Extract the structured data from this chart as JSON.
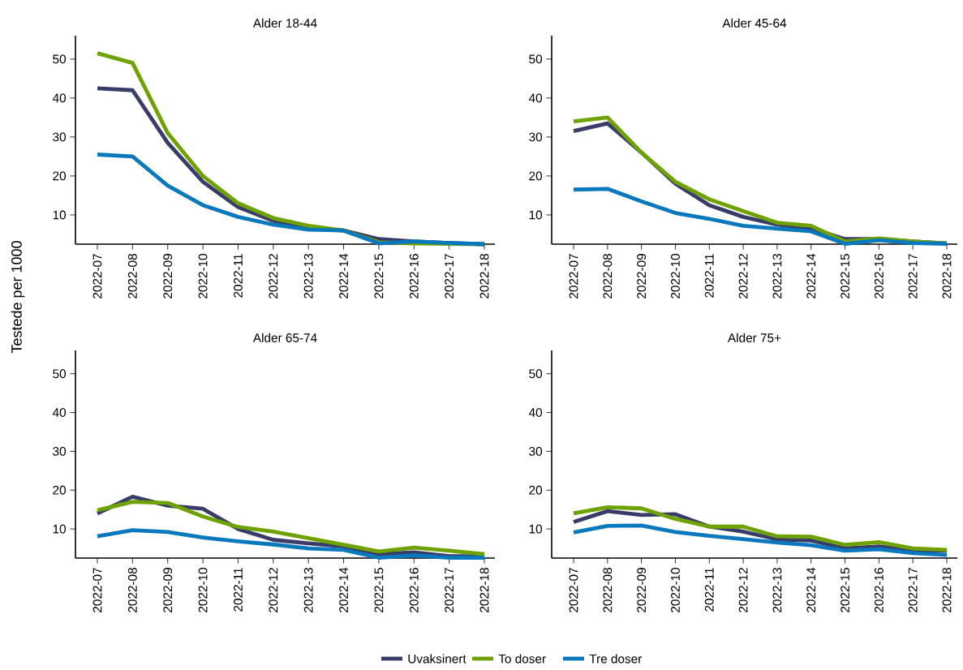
{
  "chart_data": [
    {
      "type": "line",
      "title": "Alder 18-44",
      "ylabel": "Testede per 1000",
      "legend": "bottom",
      "line_style": "solid",
      "categories": [
        "2022-07",
        "2022-08",
        "2022-09",
        "2022-10",
        "2022-11",
        "2022-12",
        "2022-13",
        "2022-14",
        "2022-15",
        "2022-16",
        "2022-17",
        "2022-18"
      ],
      "ylim": [
        2.5,
        56
      ],
      "yticks": [
        10,
        20,
        30,
        40,
        50
      ],
      "series": [
        {
          "name": "Uvaksinert",
          "color": "#393c68",
          "values": [
            42.5,
            42,
            28.5,
            18.5,
            12,
            8.5,
            6.5,
            6,
            3.8,
            3.2,
            2.8,
            2.5
          ]
        },
        {
          "name": "To doser",
          "color": "#6ea200",
          "values": [
            51.5,
            49,
            31,
            20,
            13,
            9.2,
            7.2,
            6,
            3,
            2.7,
            2.6,
            2.5
          ]
        },
        {
          "name": "Tre doser",
          "color": "#0a78bc",
          "values": [
            25.5,
            25,
            17.5,
            12.5,
            9.5,
            7.5,
            6.2,
            6,
            2.7,
            3.2,
            2.8,
            2.5
          ]
        }
      ]
    },
    {
      "type": "line",
      "title": "Alder 45-64",
      "line_style": "solid",
      "categories": [
        "2022-07",
        "2022-08",
        "2022-09",
        "2022-10",
        "2022-11",
        "2022-12",
        "2022-13",
        "2022-14",
        "2022-15",
        "2022-16",
        "2022-17",
        "2022-18"
      ],
      "ylim": [
        2.5,
        56
      ],
      "yticks": [
        10,
        20,
        30,
        40,
        50
      ],
      "series": [
        {
          "color": "#393c68",
          "values": [
            31.5,
            33.5,
            26,
            18,
            12.5,
            9.5,
            7.5,
            6.5,
            3.8,
            3.8,
            3.2,
            2.7
          ]
        },
        {
          "color": "#6ea200",
          "values": [
            34,
            35,
            26,
            18.5,
            14,
            11,
            8,
            7.2,
            3.2,
            4,
            3.2,
            2.7
          ]
        },
        {
          "color": "#0a78bc",
          "values": [
            16.5,
            16.7,
            13.5,
            10.5,
            9,
            7.2,
            6.5,
            5.8,
            2.6,
            3.5,
            2.8,
            2.6
          ]
        }
      ]
    },
    {
      "type": "line",
      "title": "Alder 65-74",
      "line_style": "solid",
      "categories": [
        "2022-07",
        "2022-08",
        "2022-09",
        "2022-10",
        "2022-11",
        "2022-12",
        "2022-13",
        "2022-14",
        "2022-15",
        "2022-16",
        "2022-17",
        "2022-18"
      ],
      "ylim": [
        2.5,
        56
      ],
      "yticks": [
        10,
        20,
        30,
        40,
        50
      ],
      "series": [
        {
          "color": "#393c68",
          "values": [
            14,
            18.3,
            16,
            15.2,
            10,
            7.2,
            6.3,
            5.5,
            3.5,
            4,
            3,
            3
          ]
        },
        {
          "color": "#6ea200",
          "values": [
            14.8,
            17,
            16.7,
            13.2,
            10.5,
            9.3,
            7.6,
            5.9,
            4.2,
            5.2,
            4.4,
            3.5
          ]
        },
        {
          "color": "#0a78bc",
          "values": [
            8.1,
            9.7,
            9.2,
            7.8,
            6.8,
            6,
            5,
            4.6,
            2.6,
            3.2,
            2.6,
            2.6
          ]
        }
      ]
    },
    {
      "type": "line",
      "title": "Alder 75+",
      "line_style": "solid",
      "categories": [
        "2022-07",
        "2022-08",
        "2022-09",
        "2022-10",
        "2022-11",
        "2022-12",
        "2022-13",
        "2022-14",
        "2022-15",
        "2022-16",
        "2022-17",
        "2022-18"
      ],
      "ylim": [
        2.5,
        56
      ],
      "yticks": [
        10,
        20,
        30,
        40,
        50
      ],
      "series": [
        {
          "color": "#393c68",
          "values": [
            11.8,
            14.6,
            13.6,
            13.8,
            10.6,
            9.3,
            7.3,
            7,
            5,
            5.5,
            4.4,
            4.4
          ]
        },
        {
          "color": "#6ea200",
          "values": [
            14,
            15.6,
            15.3,
            12.6,
            10.6,
            10.6,
            8.1,
            8,
            5.9,
            6.6,
            5,
            4.6
          ]
        },
        {
          "color": "#0a78bc",
          "values": [
            9.1,
            10.8,
            10.9,
            9.2,
            8.2,
            7.4,
            6.5,
            5.8,
            4.4,
            4.8,
            3.8,
            3.3
          ]
        }
      ]
    }
  ]
}
